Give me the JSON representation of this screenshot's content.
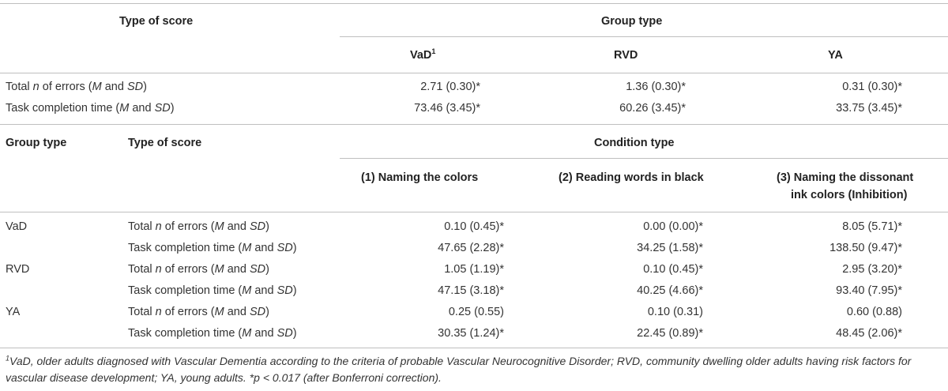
{
  "table1": {
    "header_left": "Type of score",
    "header_group": "Group type",
    "columns": [
      "VaD",
      "RVD",
      "YA"
    ],
    "col0_sup": "1",
    "rows": [
      {
        "label_pre": "Total ",
        "label_em1": "n",
        "label_mid": " of errors (",
        "label_em2": "M",
        "label_and": " and ",
        "label_em3": "SD",
        "label_end": ")",
        "values": [
          "2.71 (0.30)*",
          "1.36 (0.30)*",
          "0.31 (0.30)*"
        ]
      },
      {
        "label_pre": "Task completion time (",
        "label_em1": "",
        "label_mid": "",
        "label_em2": "M",
        "label_and": " and ",
        "label_em3": "SD",
        "label_end": ")",
        "values": [
          "73.46 (3.45)*",
          "60.26 (3.45)*",
          "33.75 (3.45)*"
        ]
      }
    ]
  },
  "table2": {
    "header_group": "Group type",
    "header_score": "Type of score",
    "header_condition": "Condition type",
    "conditions": [
      "(1) Naming the colors",
      "(2) Reading words in black",
      "(3) Naming the dissonant",
      "ink colors (Inhibition)"
    ],
    "groups": [
      {
        "name": "VaD",
        "rows": [
          {
            "kind": "errors",
            "values": [
              "0.10 (0.45)*",
              "0.00 (0.00)*",
              "8.05 (5.71)*"
            ]
          },
          {
            "kind": "time",
            "values": [
              "47.65 (2.28)*",
              "34.25 (1.58)*",
              "138.50 (9.47)*"
            ]
          }
        ]
      },
      {
        "name": "RVD",
        "rows": [
          {
            "kind": "errors",
            "values": [
              "1.05 (1.19)*",
              "0.10 (0.45)*",
              "2.95 (3.20)*"
            ]
          },
          {
            "kind": "time",
            "values": [
              "47.15 (3.18)*",
              "40.25 (4.66)*",
              "93.40 (7.95)*"
            ]
          }
        ]
      },
      {
        "name": "YA",
        "rows": [
          {
            "kind": "errors",
            "values": [
              "0.25 (0.55)",
              "0.10 (0.31)",
              "0.60 (0.88)"
            ]
          },
          {
            "kind": "time",
            "values": [
              "30.35 (1.24)*",
              "22.45 (0.89)*",
              "48.45 (2.06)*"
            ]
          }
        ]
      }
    ]
  },
  "labels": {
    "errors_pre": "Total ",
    "errors_n": "n",
    "errors_mid": " of errors (",
    "time_pre": "Task completion time (",
    "m": "M",
    "and": " and ",
    "sd": "SD",
    "close": ")"
  },
  "footnote": {
    "sup": "1",
    "text1": "VaD, older adults diagnosed with Vascular Dementia according to the criteria of probable Vascular Neurocognitive Disorder; RVD, community dwelling older adults having risk factors for vascular disease development; YA, young adults. *",
    "p": "p",
    "text2": " < 0.017 (after Bonferroni correction)."
  }
}
